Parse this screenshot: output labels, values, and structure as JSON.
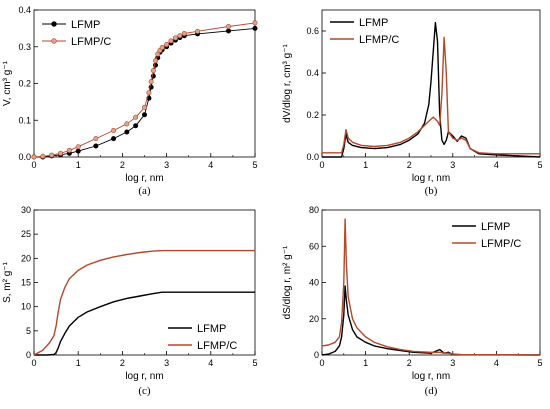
{
  "chart_data": [
    {
      "panel_label": "(a)",
      "type": "line",
      "xlabel": "log r, nm",
      "ylabel": "V, cm³ g⁻¹",
      "xlim": [
        0,
        5
      ],
      "ylim": [
        0,
        0.4
      ],
      "xticks": [
        "0",
        "1",
        "2",
        "3",
        "4",
        "5"
      ],
      "yticks": [
        "0.0",
        "0.1",
        "0.2",
        "0.3",
        "0.4"
      ],
      "legend": "top-left",
      "markers": true,
      "series": [
        {
          "name": "LFMP",
          "color": "#000000",
          "marker_fill": "#000000",
          "x": [
            0.0,
            0.2,
            0.4,
            0.6,
            0.8,
            1.0,
            1.4,
            1.8,
            2.1,
            2.3,
            2.5,
            2.6,
            2.65,
            2.7,
            2.75,
            2.8,
            2.85,
            2.9,
            3.0,
            3.1,
            3.2,
            3.3,
            3.4,
            3.7,
            4.4,
            5.0
          ],
          "y": [
            0.0,
            0.0,
            0.003,
            0.006,
            0.01,
            0.016,
            0.03,
            0.05,
            0.068,
            0.085,
            0.115,
            0.16,
            0.19,
            0.22,
            0.25,
            0.27,
            0.285,
            0.292,
            0.3,
            0.31,
            0.318,
            0.325,
            0.33,
            0.335,
            0.343,
            0.35
          ]
        },
        {
          "name": "LFMP/C",
          "color": "#b5472a",
          "marker_fill": "#d7a68e",
          "x": [
            0.0,
            0.2,
            0.4,
            0.6,
            0.8,
            1.0,
            1.4,
            1.8,
            2.1,
            2.3,
            2.5,
            2.6,
            2.65,
            2.7,
            2.75,
            2.8,
            2.85,
            2.9,
            3.0,
            3.1,
            3.2,
            3.3,
            3.4,
            3.7,
            4.4,
            5.0
          ],
          "y": [
            0.0,
            0.002,
            0.005,
            0.01,
            0.018,
            0.028,
            0.05,
            0.072,
            0.09,
            0.108,
            0.135,
            0.175,
            0.205,
            0.235,
            0.262,
            0.28,
            0.29,
            0.298,
            0.306,
            0.316,
            0.324,
            0.33,
            0.336,
            0.342,
            0.355,
            0.365
          ]
        }
      ]
    },
    {
      "panel_label": "(b)",
      "type": "line",
      "xlabel": "log r, nm",
      "ylabel": "dV/dlog r, cm³ g⁻¹",
      "xlim": [
        0,
        5
      ],
      "ylim": [
        0,
        0.7
      ],
      "xticks": [
        "0",
        "1",
        "2",
        "3",
        "4",
        "5"
      ],
      "yticks": [
        "0.0",
        "0.2",
        "0.4",
        "0.6"
      ],
      "legend": "top-left",
      "series": [
        {
          "name": "LFMP",
          "color": "#000000",
          "x": [
            0.0,
            0.45,
            0.5,
            0.55,
            0.6,
            0.7,
            0.9,
            1.2,
            1.5,
            1.8,
            2.0,
            2.2,
            2.35,
            2.45,
            2.5,
            2.55,
            2.6,
            2.65,
            2.7,
            2.75,
            2.8,
            2.85,
            2.9,
            3.0,
            3.1,
            3.2,
            3.3,
            3.4,
            3.6,
            4.0,
            5.0
          ],
          "y": [
            0.0,
            0.0,
            0.04,
            0.11,
            0.07,
            0.055,
            0.045,
            0.04,
            0.045,
            0.06,
            0.08,
            0.11,
            0.16,
            0.25,
            0.36,
            0.5,
            0.64,
            0.55,
            0.2,
            0.08,
            0.06,
            0.08,
            0.12,
            0.1,
            0.075,
            0.1,
            0.09,
            0.04,
            0.015,
            0.01,
            0.0
          ]
        },
        {
          "name": "LFMP/C",
          "color": "#b5472a",
          "x": [
            0.0,
            0.45,
            0.5,
            0.55,
            0.6,
            0.7,
            0.9,
            1.2,
            1.5,
            1.8,
            2.0,
            2.2,
            2.35,
            2.45,
            2.55,
            2.65,
            2.7,
            2.75,
            2.8,
            2.85,
            2.9,
            3.0,
            3.1,
            3.2,
            3.3,
            3.4,
            3.6,
            4.0,
            5.0
          ],
          "y": [
            0.02,
            0.02,
            0.06,
            0.13,
            0.09,
            0.07,
            0.055,
            0.05,
            0.055,
            0.07,
            0.09,
            0.12,
            0.15,
            0.17,
            0.19,
            0.17,
            0.15,
            0.3,
            0.57,
            0.4,
            0.12,
            0.09,
            0.08,
            0.09,
            0.08,
            0.04,
            0.02,
            0.015,
            0.015
          ]
        }
      ]
    },
    {
      "panel_label": "(c)",
      "type": "line",
      "xlabel": "log r, nm",
      "ylabel": "S, m² g⁻¹",
      "xlim": [
        0,
        5
      ],
      "ylim": [
        0,
        30
      ],
      "xticks": [
        "0",
        "1",
        "2",
        "3",
        "4",
        "5"
      ],
      "yticks": [
        "0",
        "5",
        "10",
        "15",
        "20",
        "25",
        "30"
      ],
      "legend": "bottom-right",
      "series": [
        {
          "name": "LFMP",
          "color": "#000000",
          "x": [
            0.0,
            0.3,
            0.45,
            0.5,
            0.55,
            0.6,
            0.7,
            0.8,
            1.0,
            1.2,
            1.5,
            1.8,
            2.1,
            2.4,
            2.7,
            2.9,
            3.2,
            4.0,
            5.0
          ],
          "y": [
            0.0,
            0.0,
            0.1,
            0.5,
            1.5,
            2.8,
            4.5,
            6.0,
            7.8,
            8.9,
            10.0,
            11.0,
            11.7,
            12.2,
            12.7,
            13.0,
            13.0,
            13.0,
            13.0
          ]
        },
        {
          "name": "LFMP/C",
          "color": "#b5472a",
          "x": [
            0.0,
            0.2,
            0.35,
            0.45,
            0.5,
            0.55,
            0.6,
            0.7,
            0.8,
            1.0,
            1.2,
            1.5,
            1.8,
            2.1,
            2.4,
            2.7,
            2.9,
            3.2,
            4.0,
            5.0
          ],
          "y": [
            0.0,
            1.0,
            2.5,
            4.0,
            6.0,
            9.0,
            11.5,
            14.0,
            15.8,
            17.5,
            18.6,
            19.6,
            20.3,
            20.8,
            21.2,
            21.5,
            21.6,
            21.6,
            21.6,
            21.6
          ]
        }
      ]
    },
    {
      "panel_label": "(d)",
      "type": "line",
      "xlabel": "log r, nm",
      "ylabel": "dS/dlog r, m² g⁻¹",
      "xlim": [
        0,
        5
      ],
      "ylim": [
        0,
        80
      ],
      "xticks": [
        "0",
        "1",
        "2",
        "3",
        "4",
        "5"
      ],
      "yticks": [
        "0",
        "20",
        "40",
        "60",
        "80"
      ],
      "legend": "top-right",
      "series": [
        {
          "name": "LFMP",
          "color": "#000000",
          "x": [
            0.0,
            0.15,
            0.3,
            0.4,
            0.45,
            0.5,
            0.53,
            0.56,
            0.6,
            0.7,
            0.8,
            1.0,
            1.2,
            1.5,
            1.8,
            2.1,
            2.5,
            2.6,
            2.7,
            2.8,
            2.9,
            3.0,
            3.2,
            5.0
          ],
          "y": [
            0.0,
            0.5,
            2.0,
            5.0,
            10.0,
            22.0,
            38.0,
            30.0,
            22.0,
            14.0,
            10.0,
            7.0,
            5.0,
            3.5,
            2.5,
            1.5,
            1.0,
            2.0,
            3.0,
            1.0,
            1.5,
            0.3,
            0.1,
            0.0
          ]
        },
        {
          "name": "LFMP/C",
          "color": "#b5472a",
          "x": [
            0.0,
            0.15,
            0.3,
            0.4,
            0.45,
            0.5,
            0.53,
            0.56,
            0.6,
            0.7,
            0.8,
            1.0,
            1.2,
            1.5,
            1.8,
            2.1,
            2.5,
            2.7,
            2.8,
            2.9,
            3.0,
            3.2,
            5.0
          ],
          "y": [
            5.0,
            5.5,
            7.0,
            10.0,
            18.0,
            40.0,
            75.0,
            50.0,
            32.0,
            20.0,
            15.0,
            10.0,
            7.0,
            4.5,
            3.0,
            2.0,
            1.5,
            1.5,
            1.0,
            1.0,
            0.5,
            0.2,
            0.0
          ]
        }
      ]
    }
  ]
}
